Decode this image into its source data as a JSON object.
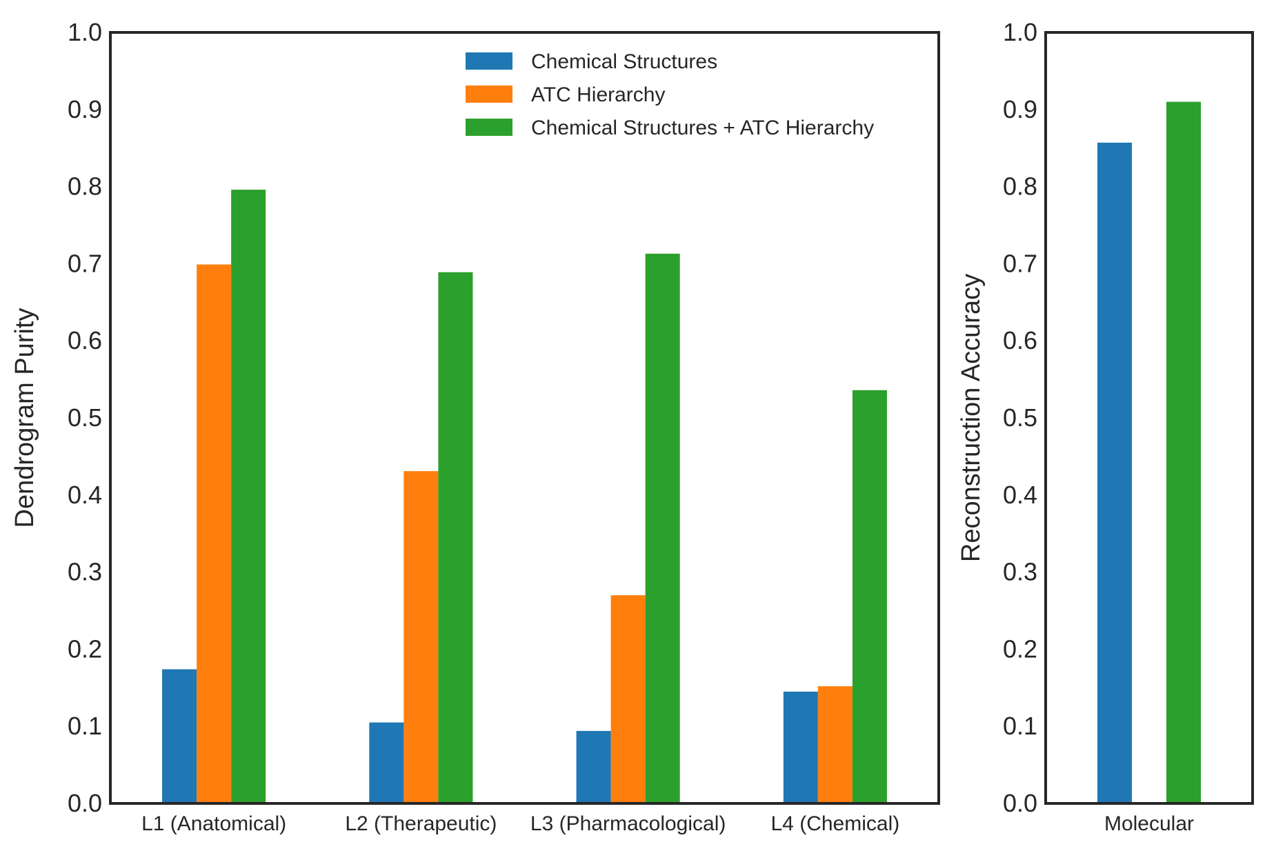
{
  "chart_data": [
    {
      "type": "bar",
      "id": "left",
      "title": "",
      "xlabel": "",
      "ylabel": "Dendrogram Purity",
      "ylim": [
        0,
        1.0
      ],
      "yticks": [
        "0.0",
        "0.1",
        "0.2",
        "0.3",
        "0.4",
        "0.5",
        "0.6",
        "0.7",
        "0.8",
        "0.9",
        "1.0"
      ],
      "grid": false,
      "legend_position": "top-right",
      "categories": [
        "L1 (Anatomical)",
        "L2 (Therapeutic)",
        "L3 (Pharmacological)",
        "L4 (Chemical)"
      ],
      "series": [
        {
          "name": "Chemical Structures",
          "color": "#1f77b4",
          "values": [
            0.174,
            0.105,
            0.094,
            0.145
          ]
        },
        {
          "name": "ATC Hierarchy",
          "color": "#ff7f0e",
          "values": [
            0.699,
            0.431,
            0.27,
            0.152
          ]
        },
        {
          "name": "Chemical Structures + ATC Hierarchy",
          "color": "#2ca02c",
          "values": [
            0.796,
            0.689,
            0.713,
            0.536
          ]
        }
      ]
    },
    {
      "type": "bar",
      "id": "right",
      "title": "",
      "xlabel": "",
      "ylabel": "Reconstruction Accuracy",
      "ylim": [
        0,
        1.0
      ],
      "yticks": [
        "0.0",
        "0.1",
        "0.2",
        "0.3",
        "0.4",
        "0.5",
        "0.6",
        "0.7",
        "0.8",
        "0.9",
        "1.0"
      ],
      "grid": false,
      "categories": [
        "Molecular"
      ],
      "series": [
        {
          "name": "Chemical Structures",
          "color": "#1f77b4",
          "values": [
            0.857
          ]
        },
        {
          "name": "Chemical Structures + ATC Hierarchy",
          "color": "#2ca02c",
          "values": [
            0.91
          ]
        }
      ]
    }
  ]
}
